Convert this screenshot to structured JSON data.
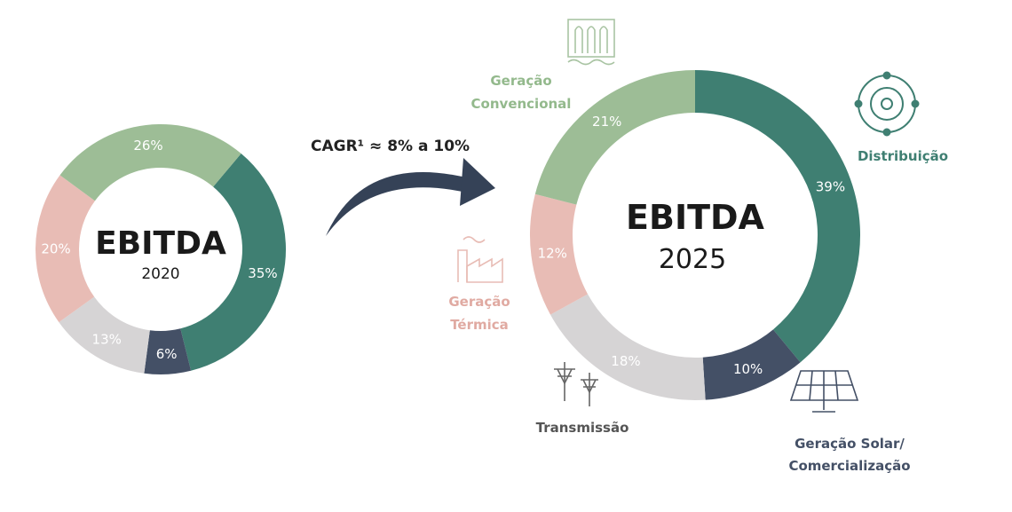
{
  "chart_data": [
    {
      "type": "pie",
      "title": "EBITDA",
      "subtitle": "2020",
      "categories": [
        "Distribuição",
        "Geração Solar/ Comercialização",
        "Transmissão",
        "Geração Térmica",
        "Geração Convencional"
      ],
      "values": [
        35,
        6,
        13,
        20,
        26
      ],
      "labels": [
        "35%",
        "6%",
        "13%",
        "20%",
        "26%"
      ]
    },
    {
      "type": "pie",
      "title": "EBITDA",
      "subtitle": "2025",
      "categories": [
        "Distribuição",
        "Geração Solar/ Comercialização",
        "Transmissão",
        "Geração Térmica",
        "Geração Convencional"
      ],
      "values": [
        39,
        10,
        18,
        12,
        21
      ],
      "labels": [
        "39%",
        "10%",
        "18%",
        "12%",
        "21%"
      ]
    }
  ],
  "colors": [
    "#3f7f72",
    "#445066",
    "#d6d4d5",
    "#e8bcb5",
    "#9dbd96"
  ],
  "label_colors": [
    "#ffffff",
    "#ffffff",
    "#ffffff",
    "#ffffff",
    "#ffffff"
  ],
  "annotation": {
    "cagr": "CAGR¹ ≈ 8% a 10%"
  },
  "segments": {
    "distribuicao": {
      "label": "Distribuição",
      "icon": "distribution-icon"
    },
    "solar": {
      "line1": "Geração Solar/",
      "line2": "Comercialização",
      "icon": "solar-panel-icon"
    },
    "transmissao": {
      "label": "Transmissão",
      "icon": "transmission-tower-icon"
    },
    "termica": {
      "line1": "Geração",
      "line2": "Térmica",
      "icon": "factory-icon"
    },
    "convencional": {
      "line1": "Geração",
      "line2": "Convencional",
      "icon": "dam-icon"
    }
  },
  "segment_colors": {
    "distribuicao": "#3f7f72",
    "solar": "#445066",
    "transmissao": "#555555",
    "termica": "#e0aaa2",
    "convencional": "#93b98c"
  }
}
